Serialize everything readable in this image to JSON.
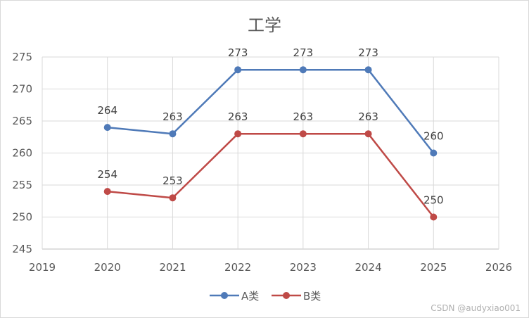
{
  "chart_data": {
    "type": "line",
    "title": "工学",
    "x": [
      2020,
      2021,
      2022,
      2023,
      2024,
      2025
    ],
    "xlim": [
      2019,
      2026
    ],
    "ylim": [
      245,
      275
    ],
    "xticks": [
      "2019",
      "2020",
      "2021",
      "2022",
      "2023",
      "2024",
      "2025",
      "2026"
    ],
    "yticks": [
      "245",
      "250",
      "255",
      "260",
      "265",
      "270",
      "275"
    ],
    "grid": true,
    "legend": "bottom",
    "series": [
      {
        "name": "A类",
        "color": "#4f7ab8",
        "values": [
          264,
          263,
          273,
          273,
          273,
          260
        ]
      },
      {
        "name": "B类",
        "color": "#bf4a47",
        "values": [
          254,
          253,
          263,
          263,
          263,
          250
        ]
      }
    ]
  },
  "watermark": "CSDN @audyxiao001"
}
